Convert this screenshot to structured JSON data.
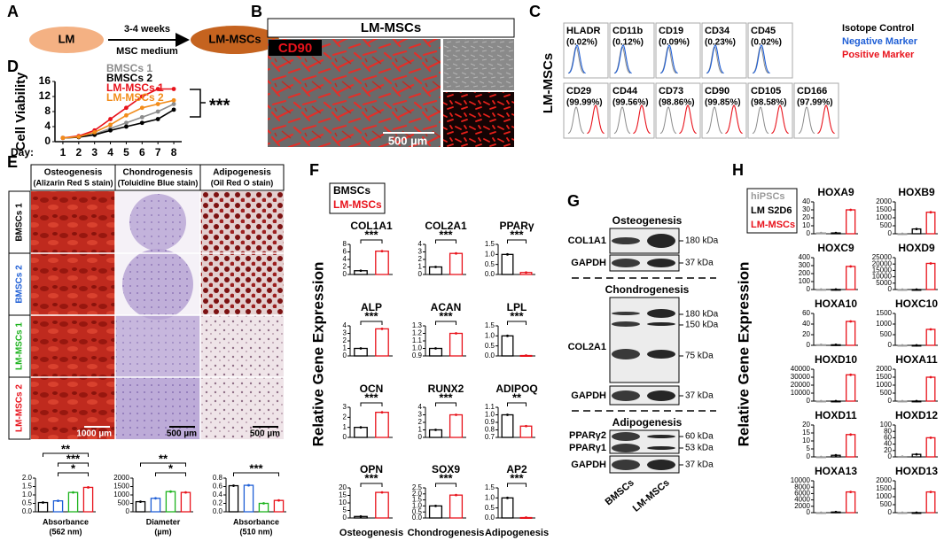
{
  "panel_a": {
    "label": "A",
    "source": "LM",
    "duration": "3-4 weeks",
    "medium": "MSC medium",
    "target": "LM-MSCs"
  },
  "panel_b": {
    "label": "B",
    "title": "LM-MSCs",
    "stain": "CD90",
    "scale_bar": "500 µm"
  },
  "panel_c": {
    "label": "C",
    "row_label": "LM-MSCs",
    "legend": [
      {
        "name": "Isotope Control",
        "color": "#000000"
      },
      {
        "name": "Negative Marker",
        "color": "#1f5fd6"
      },
      {
        "name": "Positive Marker",
        "color": "#e8121b"
      }
    ],
    "negative_markers": [
      {
        "name": "HLADR",
        "percent": "(0.02%)"
      },
      {
        "name": "CD11b",
        "percent": "(0.12%)"
      },
      {
        "name": "CD19",
        "percent": "(0.09%)"
      },
      {
        "name": "CD34",
        "percent": "(0.23%)"
      },
      {
        "name": "CD45",
        "percent": "(0.02%)"
      }
    ],
    "positive_markers": [
      {
        "name": "CD29",
        "percent": "(99.99%)"
      },
      {
        "name": "CD44",
        "percent": "(99.56%)"
      },
      {
        "name": "CD73",
        "percent": "(98.86%)"
      },
      {
        "name": "CD90",
        "percent": "(99.85%)"
      },
      {
        "name": "CD105",
        "percent": "(98.58%)"
      },
      {
        "name": "CD166",
        "percent": "(97.99%)"
      }
    ]
  },
  "panel_d": {
    "label": "D",
    "type": "line",
    "y_label": "Cell Viability",
    "x_label": "Day:",
    "x": [
      1,
      2,
      3,
      4,
      5,
      6,
      7,
      8
    ],
    "xlim": [
      0.5,
      8.5
    ],
    "xticks": [
      1,
      2,
      3,
      4,
      5,
      6,
      7,
      8
    ],
    "ylim": [
      0,
      16
    ],
    "yticks": [
      0,
      4,
      8,
      12,
      16
    ],
    "series": [
      {
        "name": "BMSCs 1",
        "color": "#8c8c8c",
        "values": [
          1,
          1.2,
          2,
          3.5,
          5,
          6.5,
          8,
          10
        ]
      },
      {
        "name": "BMSCs 2",
        "color": "#000000",
        "values": [
          1,
          1.2,
          1.8,
          3,
          4,
          5,
          6,
          8.5
        ]
      },
      {
        "name": "LM-MSCs 1",
        "color": "#e8121b",
        "values": [
          1,
          1.5,
          3,
          6,
          9,
          12,
          14,
          14
        ]
      },
      {
        "name": "LM-MSCs 2",
        "color": "#f28c1a",
        "values": [
          1,
          1.3,
          2.5,
          4.5,
          7,
          9,
          10,
          11
        ]
      }
    ],
    "significance": "***"
  },
  "panel_e": {
    "label": "E",
    "columns": [
      {
        "title": "Osteogenesis",
        "subtitle": "(Alizarin Red S stain)",
        "scale_bar": "1000 µm"
      },
      {
        "title": "Chondrogenesis",
        "subtitle": "(Toluidine Blue stain)",
        "scale_bar": "500 µm"
      },
      {
        "title": "Adipogenesis",
        "subtitle": "(Oil Red O stain)",
        "scale_bar": "500 µm"
      }
    ],
    "rows": [
      {
        "name": "BMSCs 1",
        "color": "#000000"
      },
      {
        "name": "BMSCs 2",
        "color": "#1f5fd6"
      },
      {
        "name": "LM-MSCs 1",
        "color": "#1db31d"
      },
      {
        "name": "LM-MSCs 2",
        "color": "#e8121b"
      }
    ],
    "charts": [
      {
        "type": "bar",
        "ylim": [
          0,
          2
        ],
        "yticks": [
          {
            "value": 0,
            "label": "0.0"
          },
          0.5,
          {
            "value": 1,
            "label": "1.0"
          },
          1.5,
          {
            "value": 2,
            "label": "2.0"
          }
        ],
        "values": [
          0.55,
          0.65,
          1.15,
          1.45
        ],
        "x_label": "Absorbance",
        "x_unit": "(562 nm)",
        "significance": [
          "**",
          "***",
          "*"
        ]
      },
      {
        "type": "bar",
        "ylim": [
          0,
          2000
        ],
        "yticks": [
          0,
          500,
          1000,
          1500,
          2000
        ],
        "values": [
          600,
          800,
          1200,
          1150
        ],
        "x_label": "Diameter",
        "x_unit": "(µm)",
        "significance": [
          "**",
          "*"
        ]
      },
      {
        "type": "bar",
        "ylim": [
          0,
          0.8
        ],
        "yticks": [
          {
            "value": 0,
            "label": "0.0"
          },
          0.2,
          0.4,
          0.6,
          0.8
        ],
        "values": [
          0.62,
          0.63,
          0.2,
          0.27
        ],
        "x_label": "Absorbance",
        "x_unit": "(510 nm)",
        "significance": [
          "***"
        ]
      }
    ]
  },
  "panel_f": {
    "label": "F",
    "y_label": "Relative Gene Expression",
    "legend": [
      {
        "name": "BMSCs",
        "color": "#000000"
      },
      {
        "name": "LM-MSCs",
        "color": "#e8121b"
      }
    ],
    "x_labels": [
      "Osteogenesis",
      "Chondrogenesis",
      "Adipogenesis"
    ],
    "genes": [
      {
        "name": "COL1A1",
        "ylim": [
          0,
          8
        ],
        "yticks": [
          0,
          2,
          4,
          6,
          8
        ],
        "values": [
          1,
          6.2
        ],
        "significance": "***"
      },
      {
        "name": "COL2A1",
        "ylim": [
          0,
          4
        ],
        "yticks": [
          0,
          1,
          2,
          3,
          4
        ],
        "values": [
          1,
          2.8
        ],
        "significance": "***"
      },
      {
        "name": "PPARγ",
        "ylim": [
          0,
          1.5
        ],
        "yticks": [
          {
            "value": 0,
            "label": "0.0"
          },
          0.5,
          {
            "value": 1,
            "label": "1.0"
          },
          1.5
        ],
        "values": [
          1,
          0.1
        ],
        "significance": "***"
      },
      {
        "name": "ALP",
        "ylim": [
          0,
          4
        ],
        "yticks": [
          0,
          1,
          2,
          3,
          4
        ],
        "values": [
          1,
          3.6
        ],
        "significance": "***"
      },
      {
        "name": "ACAN",
        "ylim": [
          0.9,
          1.3
        ],
        "yticks": [
          0.9,
          {
            "value": 1,
            "label": "1.0"
          },
          1.1,
          1.2,
          1.3
        ],
        "values": [
          1.0,
          1.2
        ],
        "significance": "***"
      },
      {
        "name": "LPL",
        "ylim": [
          0,
          1.5
        ],
        "yticks": [
          {
            "value": 0,
            "label": "0.0"
          },
          0.5,
          {
            "value": 1,
            "label": "1.0"
          },
          1.5
        ],
        "values": [
          1,
          0.02
        ],
        "significance": "***"
      },
      {
        "name": "OCN",
        "ylim": [
          0,
          3
        ],
        "yticks": [
          0,
          1,
          2,
          3
        ],
        "values": [
          1,
          2.5
        ],
        "significance": "***"
      },
      {
        "name": "RUNX2",
        "ylim": [
          0,
          4
        ],
        "yticks": [
          0,
          1,
          2,
          3,
          4
        ],
        "values": [
          1,
          3
        ],
        "significance": "***"
      },
      {
        "name": "ADIPOQ",
        "ylim": [
          0.7,
          1.1
        ],
        "yticks": [
          0.7,
          0.8,
          0.9,
          {
            "value": 1,
            "label": "1.0"
          },
          1.1
        ],
        "values": [
          1.0,
          0.85
        ],
        "significance": "**"
      },
      {
        "name": "OPN",
        "ylim": [
          0,
          20
        ],
        "yticks": [
          0,
          5,
          10,
          15,
          20
        ],
        "values": [
          1,
          17
        ],
        "significance": "***"
      },
      {
        "name": "SOX9",
        "ylim": [
          0,
          2.5
        ],
        "yticks": [
          {
            "value": 0,
            "label": "0.0"
          },
          0.5,
          {
            "value": 1,
            "label": "1.0"
          },
          1.5,
          {
            "value": 2,
            "label": "2.0"
          },
          2.5
        ],
        "values": [
          1,
          1.9
        ],
        "significance": "***"
      },
      {
        "name": "AP2",
        "ylim": [
          0,
          1.5
        ],
        "yticks": [
          {
            "value": 0,
            "label": "0.0"
          },
          0.5,
          {
            "value": 1,
            "label": "1.0"
          },
          1.5
        ],
        "values": [
          1,
          0.02
        ],
        "significance": "***"
      }
    ]
  },
  "panel_g": {
    "label": "G",
    "sections": [
      {
        "title": "Osteogenesis",
        "blots": [
          {
            "names": [
              "COL1A1"
            ],
            "markers": [
              "180 kDa"
            ]
          },
          {
            "names": [
              "GAPDH"
            ],
            "markers": [
              "37 kDa"
            ]
          }
        ]
      },
      {
        "title": "Chondrogenesis",
        "blots": [
          {
            "names": [
              "COL2A1"
            ],
            "markers": [
              "180 kDa",
              "150 kDa",
              "75 kDa"
            ]
          },
          {
            "names": [
              "GAPDH"
            ],
            "markers": [
              "37 kDa"
            ]
          }
        ]
      },
      {
        "title": "Adipogenesis",
        "blots": [
          {
            "names": [
              "PPARγ2",
              "PPARγ1"
            ],
            "markers": [
              "60 kDa",
              "53 kDa"
            ]
          },
          {
            "names": [
              "GAPDH"
            ],
            "markers": [
              "37 kDa"
            ]
          }
        ]
      }
    ],
    "lanes": [
      "BMSCs",
      "LM-MSCs"
    ]
  },
  "panel_h": {
    "label": "H",
    "y_label": "Relative Gene Expression",
    "legend": [
      {
        "name": "hiPSCs",
        "color": "#9a9a9a"
      },
      {
        "name": "LM S2D6",
        "color": "#000000"
      },
      {
        "name": "LM-MSCs",
        "color": "#e8121b"
      }
    ],
    "genes": [
      {
        "name": "HOXA9",
        "ylim": [
          0,
          40
        ],
        "yticks": [
          0,
          10,
          20,
          30,
          40
        ],
        "values": [
          1,
          1,
          30
        ]
      },
      {
        "name": "HOXB9",
        "ylim": [
          0,
          2000
        ],
        "yticks": [
          0,
          500,
          1000,
          1500,
          2000
        ],
        "values": [
          1,
          300,
          1350
        ]
      },
      {
        "name": "HOXC9",
        "ylim": [
          0,
          400
        ],
        "yticks": [
          0,
          100,
          200,
          300,
          400
        ],
        "values": [
          1,
          1,
          290
        ]
      },
      {
        "name": "HOXD9",
        "ylim": [
          0,
          25000
        ],
        "yticks": [
          0,
          5000,
          10000,
          15000,
          20000,
          25000
        ],
        "values": [
          1,
          1,
          20500
        ]
      },
      {
        "name": "HOXA10",
        "ylim": [
          0,
          60
        ],
        "yticks": [
          0,
          20,
          40,
          60
        ],
        "values": [
          1,
          1,
          45
        ]
      },
      {
        "name": "HOXC10",
        "ylim": [
          0,
          1500
        ],
        "yticks": [
          0,
          500,
          1000,
          1500
        ],
        "values": [
          1,
          1,
          750
        ]
      },
      {
        "name": "HOXD10",
        "ylim": [
          0,
          40000
        ],
        "yticks": [
          0,
          10000,
          20000,
          30000,
          40000
        ],
        "values": [
          1,
          1,
          33000
        ]
      },
      {
        "name": "HOXA11",
        "ylim": [
          0,
          2000
        ],
        "yticks": [
          0,
          500,
          1000,
          1500,
          2000
        ],
        "values": [
          1,
          1,
          1500
        ]
      },
      {
        "name": "HOXD11",
        "ylim": [
          0,
          20
        ],
        "yticks": [
          0,
          5,
          10,
          15,
          20
        ],
        "values": [
          0,
          1,
          14
        ]
      },
      {
        "name": "HOXD12",
        "ylim": [
          0,
          100
        ],
        "yticks": [
          0,
          20,
          40,
          60,
          80,
          100
        ],
        "values": [
          1,
          8,
          60
        ]
      },
      {
        "name": "HOXA13",
        "ylim": [
          0,
          10000
        ],
        "yticks": [
          0,
          2000,
          4000,
          6000,
          8000,
          10000
        ],
        "values": [
          1,
          200,
          6500
        ]
      },
      {
        "name": "HOXD13",
        "ylim": [
          0,
          2000
        ],
        "yticks": [
          0,
          500,
          1000,
          1500,
          2000
        ],
        "values": [
          1,
          1,
          1300
        ]
      }
    ]
  }
}
